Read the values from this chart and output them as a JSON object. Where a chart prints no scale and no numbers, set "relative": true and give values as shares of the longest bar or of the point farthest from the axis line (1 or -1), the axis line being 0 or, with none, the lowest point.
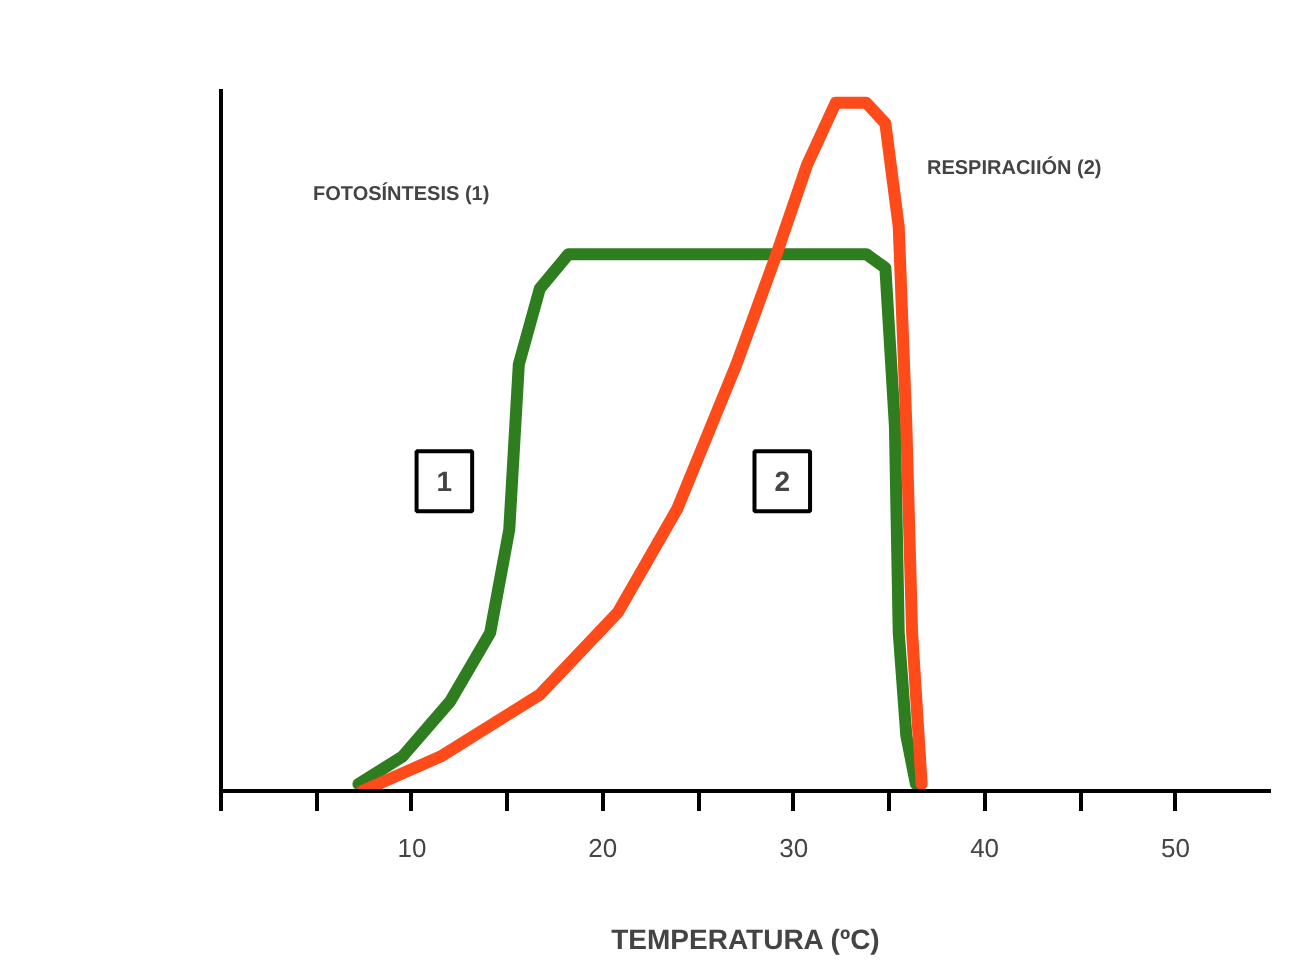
{
  "chart_data": {
    "type": "line",
    "relative": true,
    "xlabel": "TEMPERATURA (ºC)",
    "xlim": [
      0,
      55
    ],
    "xticks": [
      {
        "value": 0,
        "label": null
      },
      {
        "value": 5,
        "label": null
      },
      10,
      {
        "value": 15,
        "label": null
      },
      20,
      {
        "value": 25,
        "label": null
      },
      30,
      {
        "value": 35,
        "label": null
      },
      40,
      {
        "value": 45,
        "label": null
      },
      50
    ],
    "grid": false,
    "marker": "none",
    "line_style": "solid",
    "tick_labels": "x",
    "series": [
      {
        "color": "#2e7d1f",
        "x": [
          7.2,
          9.5,
          12.0,
          14.1,
          15.1,
          15.6,
          16.7,
          18.2,
          33.8,
          34.8,
          35.3,
          35.5,
          35.9,
          36.4
        ],
        "values": [
          0.01,
          0.05,
          0.13,
          0.23,
          0.38,
          0.62,
          0.73,
          0.78,
          0.78,
          0.76,
          0.53,
          0.23,
          0.08,
          0.01
        ]
      },
      {
        "color": "#ff4a1a",
        "x": [
          7.4,
          11.5,
          16.7,
          20.8,
          23.9,
          27.0,
          29.1,
          30.7,
          32.2,
          33.8,
          34.8,
          35.5,
          35.9,
          36.2,
          36.7
        ],
        "values": [
          0,
          0.05,
          0.14,
          0.26,
          0.41,
          0.62,
          0.78,
          0.91,
          1,
          1,
          0.97,
          0.82,
          0.53,
          0.23,
          0.01
        ]
      }
    ],
    "annotations": [
      "FOTOSÍNTESIS (1)",
      "RESPIRACIIÓN (2)",
      {
        "text": "1",
        "x": 11.7,
        "y": 0.45
      },
      {
        "text": "2",
        "x": 29.4,
        "y": 0.45
      }
    ]
  }
}
